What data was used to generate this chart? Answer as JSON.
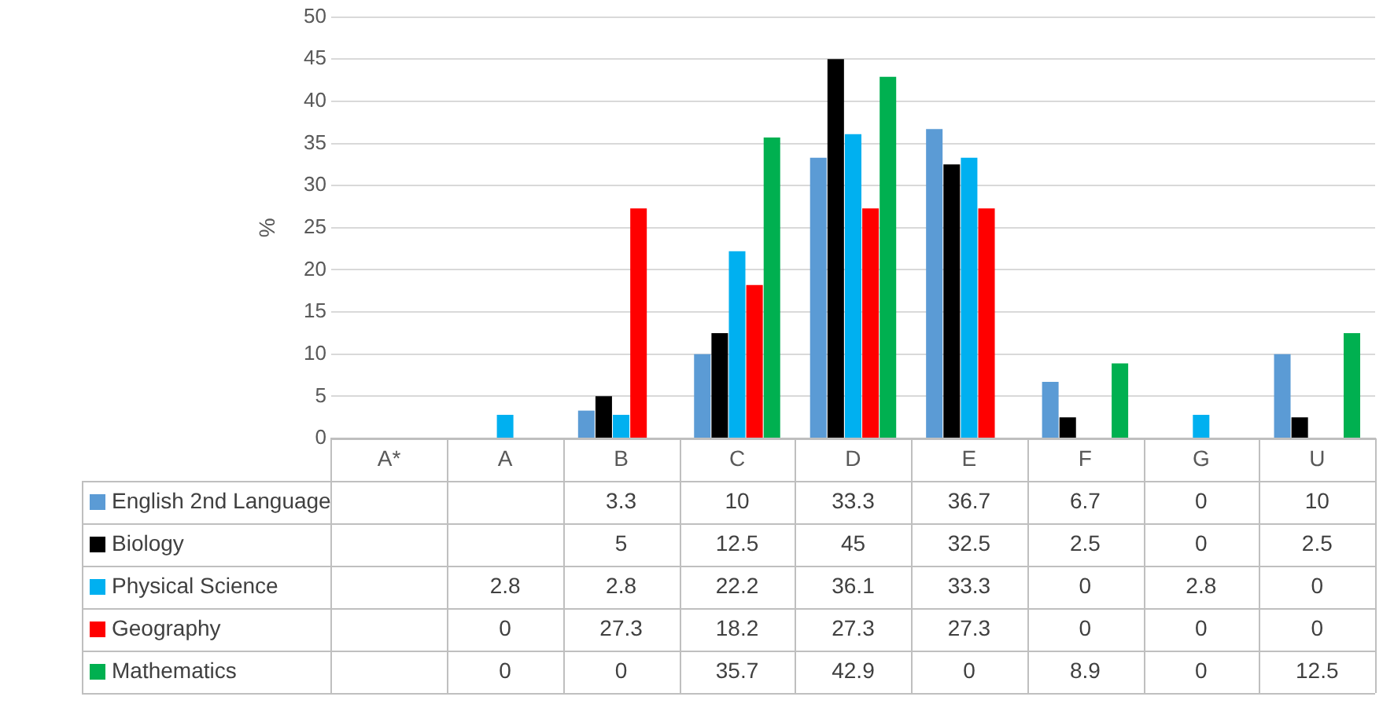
{
  "chart_data": {
    "type": "bar",
    "ylabel": "%",
    "categories": [
      "A*",
      "A",
      "B",
      "C",
      "D",
      "E",
      "F",
      "G",
      "U"
    ],
    "series": [
      {
        "name": "English 2nd Language",
        "color": "#5b9bd5",
        "values": [
          null,
          null,
          3.3,
          10,
          33.3,
          36.7,
          6.7,
          0,
          10
        ]
      },
      {
        "name": "Biology",
        "color": "#000000",
        "values": [
          null,
          null,
          5,
          12.5,
          45,
          32.5,
          2.5,
          0,
          2.5
        ]
      },
      {
        "name": "Physical Science",
        "color": "#00b0f0",
        "values": [
          null,
          2.8,
          2.8,
          22.2,
          36.1,
          33.3,
          0,
          2.8,
          0
        ]
      },
      {
        "name": "Geography",
        "color": "#ff0000",
        "values": [
          null,
          0,
          27.3,
          18.2,
          27.3,
          27.3,
          0,
          0,
          0
        ]
      },
      {
        "name": "Mathematics",
        "color": "#00b050",
        "values": [
          null,
          0,
          0,
          35.7,
          42.9,
          0,
          8.9,
          0,
          12.5
        ]
      }
    ],
    "ylim": [
      0,
      50
    ],
    "yticks": [
      0,
      5,
      10,
      15,
      20,
      25,
      30,
      35,
      40,
      45,
      50
    ],
    "grid": "y",
    "legend": "bottom",
    "data_labels": true
  }
}
